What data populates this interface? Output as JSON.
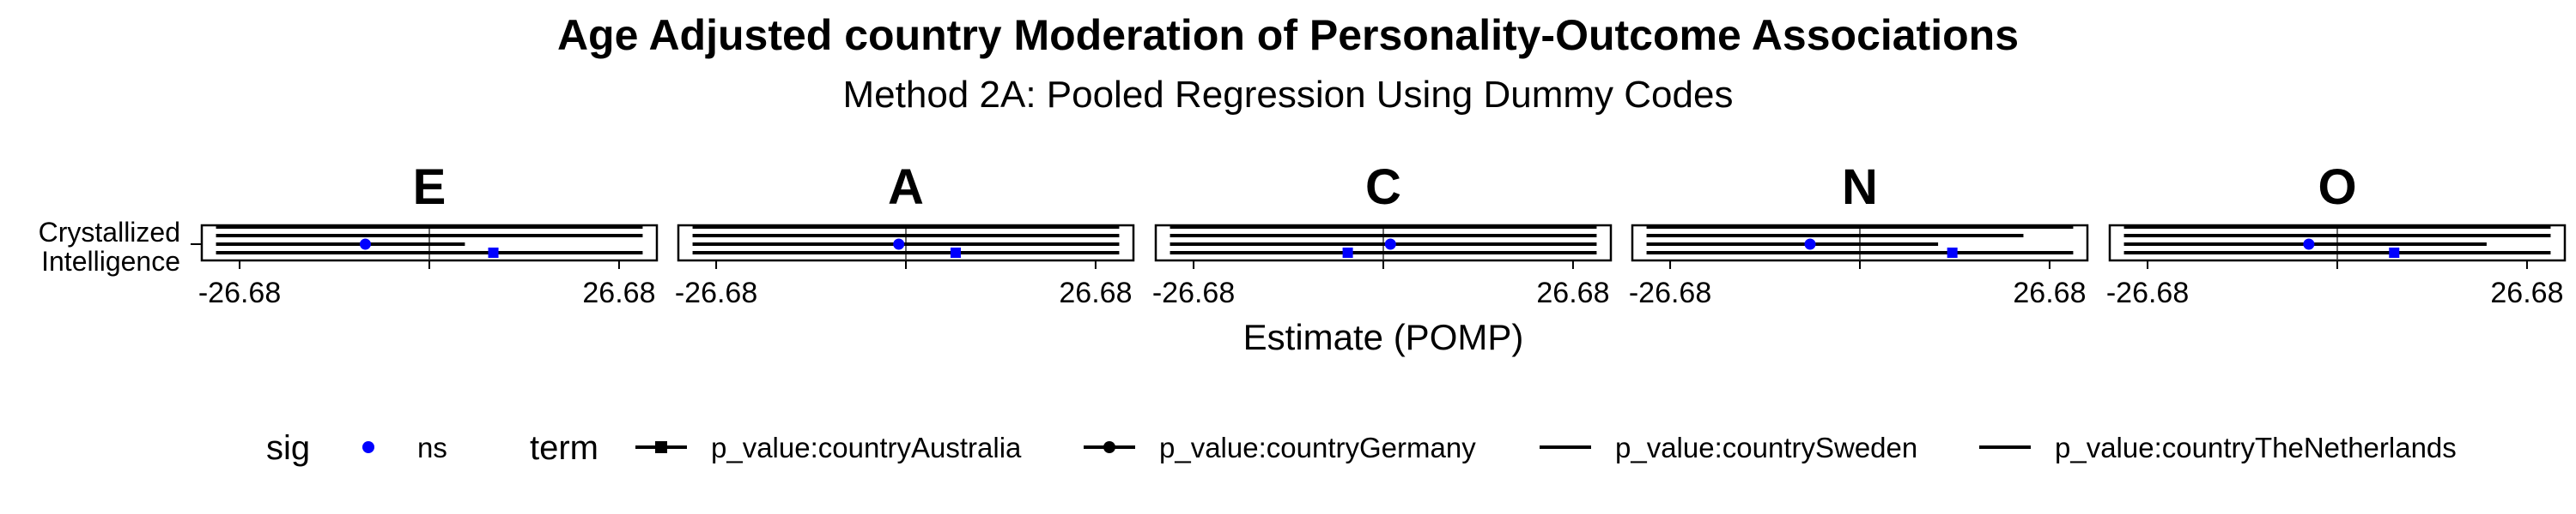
{
  "chart_data": {
    "type": "forest",
    "title": "Age Adjusted country Moderation of Personality-Outcome Associations",
    "subtitle": "Method 2A: Pooled Regression Using Dummy Codes",
    "xlabel": "Estimate (POMP)",
    "ylabel": "",
    "category_label_lines": [
      "Crystallized",
      "Intelligence"
    ],
    "xlim": [
      -32,
      32
    ],
    "x_ticks": [
      -26.68,
      0,
      26.68
    ],
    "x_tick_labels": [
      "-26.68",
      "26.68"
    ],
    "grid": "vertical line at 0",
    "legend_position": "bottom",
    "point_color": "#0000ff",
    "panels": [
      {
        "name": "E",
        "terms": [
          {
            "term": "p_value:countryAustralia",
            "estimate": 9,
            "lower": -30,
            "upper": 30,
            "sig": "ns"
          },
          {
            "term": "p_value:countryGermany",
            "estimate": -9,
            "lower": -30,
            "upper": 5,
            "sig": "ns"
          },
          {
            "term": "p_value:countrySweden",
            "estimate": null,
            "lower": -30,
            "upper": 30,
            "sig": null
          },
          {
            "term": "p_value:countryTheNetherlands",
            "estimate": null,
            "lower": -30,
            "upper": 30,
            "sig": null
          }
        ]
      },
      {
        "name": "A",
        "terms": [
          {
            "term": "p_value:countryAustralia",
            "estimate": 7,
            "lower": -30,
            "upper": 30,
            "sig": "ns"
          },
          {
            "term": "p_value:countryGermany",
            "estimate": -1,
            "lower": -30,
            "upper": 30,
            "sig": "ns"
          },
          {
            "term": "p_value:countrySweden",
            "estimate": null,
            "lower": -30,
            "upper": 30,
            "sig": null
          },
          {
            "term": "p_value:countryTheNetherlands",
            "estimate": null,
            "lower": -30,
            "upper": 30,
            "sig": null
          }
        ]
      },
      {
        "name": "C",
        "terms": [
          {
            "term": "p_value:countryAustralia",
            "estimate": -5,
            "lower": -30,
            "upper": 30,
            "sig": "ns"
          },
          {
            "term": "p_value:countryGermany",
            "estimate": 1,
            "lower": -30,
            "upper": 30,
            "sig": "ns"
          },
          {
            "term": "p_value:countrySweden",
            "estimate": null,
            "lower": -30,
            "upper": 30,
            "sig": null
          },
          {
            "term": "p_value:countryTheNetherlands",
            "estimate": null,
            "lower": -30,
            "upper": 30,
            "sig": null
          }
        ]
      },
      {
        "name": "N",
        "terms": [
          {
            "term": "p_value:countryAustralia",
            "estimate": 13,
            "lower": -30,
            "upper": 30,
            "sig": "ns"
          },
          {
            "term": "p_value:countryGermany",
            "estimate": -7,
            "lower": -30,
            "upper": 11,
            "sig": "ns"
          },
          {
            "term": "p_value:countrySweden",
            "estimate": null,
            "lower": -30,
            "upper": 23,
            "sig": null
          },
          {
            "term": "p_value:countryTheNetherlands",
            "estimate": null,
            "lower": -30,
            "upper": 30,
            "sig": null
          }
        ]
      },
      {
        "name": "O",
        "terms": [
          {
            "term": "p_value:countryAustralia",
            "estimate": 8,
            "lower": -30,
            "upper": 30,
            "sig": "ns"
          },
          {
            "term": "p_value:countryGermany",
            "estimate": -4,
            "lower": -30,
            "upper": 21,
            "sig": "ns"
          },
          {
            "term": "p_value:countrySweden",
            "estimate": null,
            "lower": -30,
            "upper": 30,
            "sig": null
          },
          {
            "term": "p_value:countryTheNetherlands",
            "estimate": null,
            "lower": -30,
            "upper": 30,
            "sig": null
          }
        ]
      }
    ],
    "legend": {
      "sig_title": "sig",
      "sig_items": [
        {
          "label": "ns",
          "color": "#0000ff"
        }
      ],
      "term_title": "term",
      "term_items": [
        {
          "label": "p_value:countryAustralia",
          "shape": "square"
        },
        {
          "label": "p_value:countryGermany",
          "shape": "circle"
        },
        {
          "label": "p_value:countrySweden",
          "shape": "none"
        },
        {
          "label": "p_value:countryTheNetherlands",
          "shape": "none"
        }
      ]
    }
  }
}
